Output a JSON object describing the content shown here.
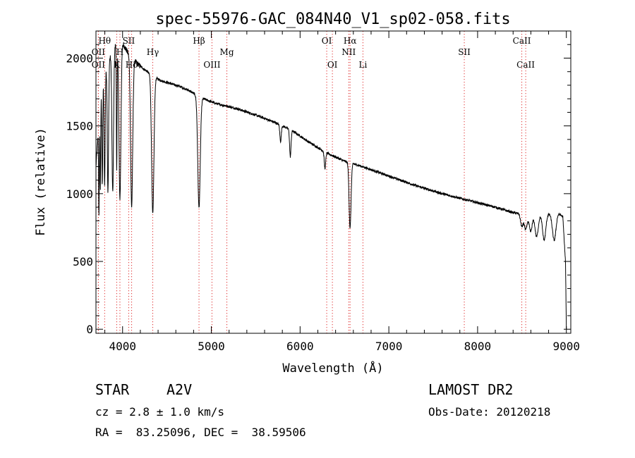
{
  "chart_data": {
    "type": "line",
    "title": "spec-55976-GAC_084N40_V1_sp02-058.fits",
    "xlabel": "Wavelength (Å)",
    "ylabel": "Flux (relative)",
    "xlim": [
      3700,
      9050
    ],
    "ylim": [
      -30,
      2200
    ],
    "x_ticks": [
      4000,
      5000,
      6000,
      7000,
      8000,
      9000
    ],
    "y_ticks": [
      0,
      500,
      1000,
      1500,
      2000
    ],
    "grid": false,
    "continuum": [
      [
        3700,
        1200
      ],
      [
        3760,
        1780
      ],
      [
        3820,
        1930
      ],
      [
        3880,
        2050
      ],
      [
        3940,
        2120
      ],
      [
        4000,
        2110
      ],
      [
        4060,
        2040
      ],
      [
        4120,
        1990
      ],
      [
        4200,
        1940
      ],
      [
        4280,
        1900
      ],
      [
        4360,
        1860
      ],
      [
        4450,
        1830
      ],
      [
        4550,
        1810
      ],
      [
        4650,
        1790
      ],
      [
        4750,
        1760
      ],
      [
        4850,
        1720
      ],
      [
        4950,
        1690
      ],
      [
        5050,
        1665
      ],
      [
        5150,
        1650
      ],
      [
        5300,
        1625
      ],
      [
        5500,
        1580
      ],
      [
        5700,
        1530
      ],
      [
        5900,
        1470
      ],
      [
        6100,
        1380
      ],
      [
        6300,
        1300
      ],
      [
        6500,
        1240
      ],
      [
        6700,
        1200
      ],
      [
        7000,
        1130
      ],
      [
        7300,
        1060
      ],
      [
        7600,
        1000
      ],
      [
        7900,
        950
      ],
      [
        8200,
        900
      ],
      [
        8400,
        860
      ],
      [
        8600,
        840
      ],
      [
        8800,
        850
      ],
      [
        8900,
        860
      ],
      [
        8960,
        830
      ],
      [
        8990,
        500
      ],
      [
        9000,
        0
      ]
    ],
    "absorptions": [
      {
        "x": 3734,
        "d": 700,
        "w": 4
      },
      {
        "x": 3750,
        "d": 650,
        "w": 4
      },
      {
        "x": 3771,
        "d": 750,
        "w": 5
      },
      {
        "x": 3798,
        "d": 800,
        "w": 6
      },
      {
        "x": 3835,
        "d": 950,
        "w": 7
      },
      {
        "x": 3889,
        "d": 1050,
        "w": 9
      },
      {
        "x": 3934,
        "d": 950,
        "w": 4
      },
      {
        "x": 3970,
        "d": 1150,
        "w": 11
      },
      {
        "x": 4102,
        "d": 1100,
        "w": 12
      },
      {
        "x": 4340,
        "d": 1020,
        "w": 13
      },
      {
        "x": 4861,
        "d": 820,
        "w": 14
      },
      {
        "x": 5780,
        "d": 120,
        "w": 8
      },
      {
        "x": 5890,
        "d": 200,
        "w": 8
      },
      {
        "x": 6280,
        "d": 120,
        "w": 8
      },
      {
        "x": 6563,
        "d": 480,
        "w": 11
      },
      {
        "x": 8498,
        "d": 90,
        "w": 14
      },
      {
        "x": 8542,
        "d": 110,
        "w": 16
      },
      {
        "x": 8598,
        "d": 120,
        "w": 16
      },
      {
        "x": 8665,
        "d": 160,
        "w": 18
      },
      {
        "x": 8750,
        "d": 190,
        "w": 18
      },
      {
        "x": 8863,
        "d": 200,
        "w": 20
      }
    ],
    "line_markers": [
      {
        "x": 3727,
        "label": "OII",
        "row": 1
      },
      {
        "x": 3727,
        "label": "OII",
        "row": 3
      },
      {
        "x": 3798,
        "label": "Hθ",
        "row": 0
      },
      {
        "x": 3934,
        "label": "K",
        "row": 3
      },
      {
        "x": 3970,
        "label": "H",
        "row": 1
      },
      {
        "x": 4069,
        "label": "SII",
        "row": 0
      },
      {
        "x": 4102,
        "label": "Hδ",
        "row": 3
      },
      {
        "x": 4340,
        "label": "Hγ",
        "row": 1
      },
      {
        "x": 4861,
        "label": "Hβ",
        "row": 0
      },
      {
        "x": 5007,
        "label": "OIII",
        "row": 3
      },
      {
        "x": 5175,
        "label": "Mg",
        "row": 1
      },
      {
        "x": 6300,
        "label": "OI",
        "row": 0
      },
      {
        "x": 6364,
        "label": "OI",
        "row": 3
      },
      {
        "x": 6548,
        "label": "NII",
        "row": 1
      },
      {
        "x": 6563,
        "label": "Hα",
        "row": 0
      },
      {
        "x": 6708,
        "label": "Li",
        "row": 3
      },
      {
        "x": 7850,
        "label": "SII",
        "row": 1
      },
      {
        "x": 8498,
        "label": "CaII",
        "row": 0
      },
      {
        "x": 8542,
        "label": "CaII",
        "row": 3
      }
    ]
  },
  "info": {
    "object_type": "STAR",
    "subclass": "A2V",
    "cz": "cz = 2.8 ± 1.0 km/s",
    "coords": "RA =  83.25096, DEC =  38.59506",
    "survey": "LAMOST DR2",
    "obs_date": "Obs-Date: 20120218"
  },
  "colors": {
    "spectrum": "#000000",
    "marker": "#e03030",
    "axis": "#000000"
  }
}
